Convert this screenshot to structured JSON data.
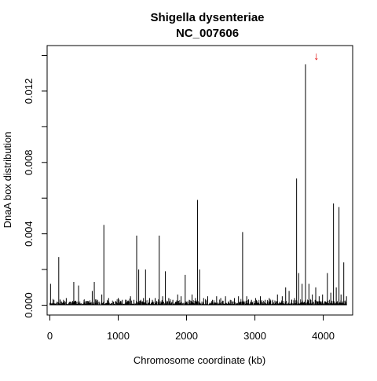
{
  "chart_data": {
    "type": "bar",
    "title": "Shigella dysenteriae",
    "subtitle": "NC_007606",
    "xlabel": "Chromosome coordinate (kb)",
    "ylabel": "DnaA box distribution",
    "xlim": [
      -40,
      4430
    ],
    "ylim": [
      -0.00055,
      0.01455
    ],
    "xticks": [
      0,
      1000,
      2000,
      3000,
      4000
    ],
    "xtick_labels": [
      "0",
      "1000",
      "2000",
      "3000",
      "4000"
    ],
    "yticks": [
      0.0,
      0.002,
      0.004,
      0.006,
      0.008,
      0.01,
      0.012,
      0.014
    ],
    "ytick_labels": [
      "0.000",
      "",
      "0.004",
      "",
      "0.008",
      "",
      "0.012",
      ""
    ],
    "grid": false,
    "peaks": {
      "x": [
        10,
        60,
        130,
        200,
        240,
        300,
        350,
        420,
        500,
        560,
        620,
        650,
        700,
        760,
        790,
        860,
        930,
        1000,
        1060,
        1120,
        1180,
        1230,
        1270,
        1300,
        1330,
        1370,
        1400,
        1460,
        1500,
        1540,
        1600,
        1650,
        1690,
        1740,
        1800,
        1870,
        1920,
        1980,
        2040,
        2080,
        2130,
        2160,
        2190,
        2250,
        2310,
        2380,
        2440,
        2500,
        2570,
        2640,
        2700,
        2760,
        2820,
        2880,
        2950,
        3010,
        3080,
        3150,
        3210,
        3260,
        3330,
        3400,
        3450,
        3500,
        3540,
        3580,
        3610,
        3640,
        3690,
        3740,
        3790,
        3840,
        3890,
        3940,
        3990,
        4060,
        4110,
        4150,
        4190,
        4230,
        4260,
        4300,
        4340
      ],
      "values": [
        0.0012,
        0.0003,
        0.0027,
        0.0003,
        0.0004,
        0.0002,
        0.0013,
        0.0011,
        0.0003,
        0.0002,
        0.0008,
        0.0013,
        0.0003,
        0.0006,
        0.0045,
        0.0004,
        0.0002,
        0.0004,
        0.0003,
        0.0003,
        0.0005,
        0.0003,
        0.0039,
        0.002,
        0.0003,
        0.0004,
        0.002,
        0.0004,
        0.0003,
        0.0004,
        0.0039,
        0.0005,
        0.0019,
        0.0004,
        0.0003,
        0.0006,
        0.0005,
        0.0017,
        0.0003,
        0.0006,
        0.0004,
        0.0059,
        0.002,
        0.0004,
        0.0005,
        0.0003,
        0.0005,
        0.0004,
        0.0005,
        0.0003,
        0.0004,
        0.0005,
        0.0041,
        0.0005,
        0.0003,
        0.0004,
        0.0005,
        0.0003,
        0.0004,
        0.0003,
        0.0006,
        0.0005,
        0.001,
        0.0008,
        0.0003,
        0.0004,
        0.0071,
        0.0018,
        0.0012,
        0.0135,
        0.0012,
        0.0006,
        0.001,
        0.0005,
        0.0006,
        0.0018,
        0.0007,
        0.0057,
        0.001,
        0.0055,
        0.0006,
        0.0024,
        0.0005
      ]
    },
    "annotation": {
      "symbol": "↓",
      "x": 3900,
      "y": 0.01375,
      "color": "#e00000"
    }
  }
}
